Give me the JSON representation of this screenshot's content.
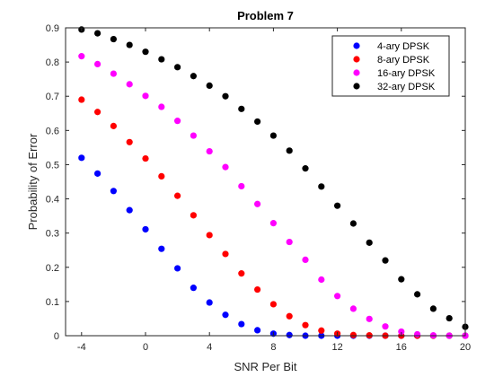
{
  "chart_data": {
    "type": "scatter",
    "title": "Problem 7",
    "xlabel": "SNR Per Bit",
    "ylabel": "Probability of Error",
    "xlim": [
      -5,
      20
    ],
    "ylim": [
      0,
      0.9
    ],
    "xticks": [
      -4,
      0,
      4,
      8,
      12,
      16,
      20
    ],
    "yticks": [
      0,
      0.1,
      0.2,
      0.3,
      0.4,
      0.5,
      0.6,
      0.7,
      0.8,
      0.9
    ],
    "grid": false,
    "legend_position": "top-right",
    "x": [
      -4,
      -3,
      -2,
      -1,
      0,
      1,
      2,
      3,
      4,
      5,
      6,
      7,
      8,
      9,
      10,
      11,
      12,
      13,
      14,
      15,
      16,
      17,
      18,
      19,
      20
    ],
    "series": [
      {
        "name": "4-ary DPSK",
        "color": "#0000ff",
        "values": [
          0.52,
          0.474,
          0.423,
          0.367,
          0.311,
          0.254,
          0.197,
          0.14,
          0.097,
          0.061,
          0.034,
          0.016,
          0.006,
          0.002,
          0.0,
          0.0,
          0.0,
          0.0,
          0.0,
          0.0,
          0.0,
          0.0,
          0.0,
          0.0,
          0.0
        ]
      },
      {
        "name": "8-ary DPSK",
        "color": "#ff0000",
        "values": [
          0.69,
          0.654,
          0.613,
          0.566,
          0.518,
          0.466,
          0.409,
          0.352,
          0.294,
          0.239,
          0.182,
          0.135,
          0.092,
          0.057,
          0.031,
          0.015,
          0.006,
          0.002,
          0.001,
          0.0,
          0.0,
          0.0,
          0.0,
          0.0,
          0.0
        ]
      },
      {
        "name": "16-ary DPSK",
        "color": "#ff00ff",
        "values": [
          0.817,
          0.794,
          0.766,
          0.735,
          0.701,
          0.669,
          0.628,
          0.585,
          0.539,
          0.493,
          0.437,
          0.385,
          0.329,
          0.274,
          0.222,
          0.164,
          0.116,
          0.079,
          0.049,
          0.027,
          0.012,
          0.004,
          0.001,
          0.0,
          0.0
        ]
      },
      {
        "name": "32-ary DPSK",
        "color": "#000000",
        "values": [
          0.895,
          0.884,
          0.867,
          0.85,
          0.83,
          0.808,
          0.785,
          0.759,
          0.731,
          0.7,
          0.663,
          0.626,
          0.585,
          0.541,
          0.489,
          0.436,
          0.38,
          0.328,
          0.272,
          0.22,
          0.165,
          0.121,
          0.079,
          0.051,
          0.026
        ]
      }
    ]
  }
}
